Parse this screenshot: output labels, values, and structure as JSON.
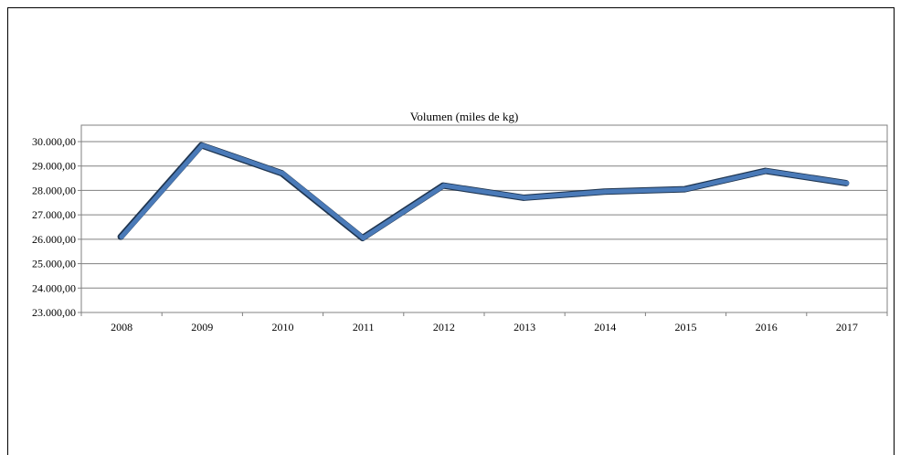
{
  "chart_data": {
    "type": "line",
    "title": "Volumen (miles de kg)",
    "xlabel": "",
    "ylabel": "",
    "categories": [
      "2008",
      "2009",
      "2010",
      "2011",
      "2012",
      "2013",
      "2014",
      "2015",
      "2016",
      "2017"
    ],
    "series": [
      {
        "values": [
          26100,
          29850,
          28700,
          26050,
          28200,
          27700,
          27950,
          28050,
          28800,
          28300
        ]
      }
    ],
    "ylim": [
      23000,
      30000
    ],
    "yticks": [
      23000,
      24000,
      25000,
      26000,
      27000,
      28000,
      29000,
      30000
    ],
    "ytick_labels": [
      "23.000,00",
      "24.000,00",
      "25.000,00",
      "26.000,00",
      "27.000,00",
      "28.000,00",
      "29.000,00",
      "30.000,00"
    ],
    "grid": true,
    "legend": "none",
    "colors": {
      "line": "#4a7ab8",
      "line_shadow": "#1f3550",
      "grid": "#808080",
      "axis": "#808080"
    }
  }
}
